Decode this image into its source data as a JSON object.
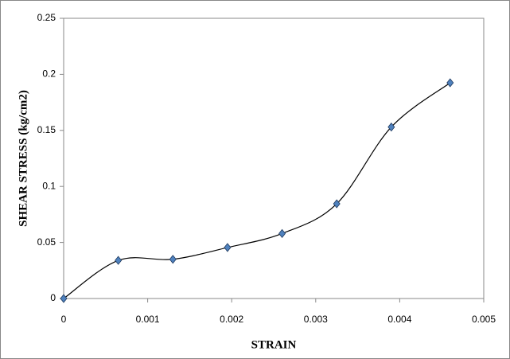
{
  "chart_data": {
    "type": "scatter",
    "x_label": "STRAIN",
    "y_label": "SHEAR STRESS (kg/cm2)",
    "series": [
      {
        "color": "#4f81bd",
        "x": [
          0,
          0.00065,
          0.0013,
          0.00195,
          0.0026,
          0.00325,
          0.0039,
          0.0046
        ],
        "values": [
          0,
          0.034,
          0.035,
          0.0455,
          0.058,
          0.0845,
          0.153,
          0.1925
        ]
      }
    ],
    "xlim": [
      0,
      0.005
    ],
    "xticks": [
      0,
      0.001,
      0.002,
      0.003,
      0.004,
      0.005
    ],
    "ylim": [
      0,
      0.25
    ],
    "yticks": [
      0,
      0.05,
      0.1,
      0.15,
      0.2,
      0.25
    ],
    "smooth": true,
    "grid": false
  }
}
